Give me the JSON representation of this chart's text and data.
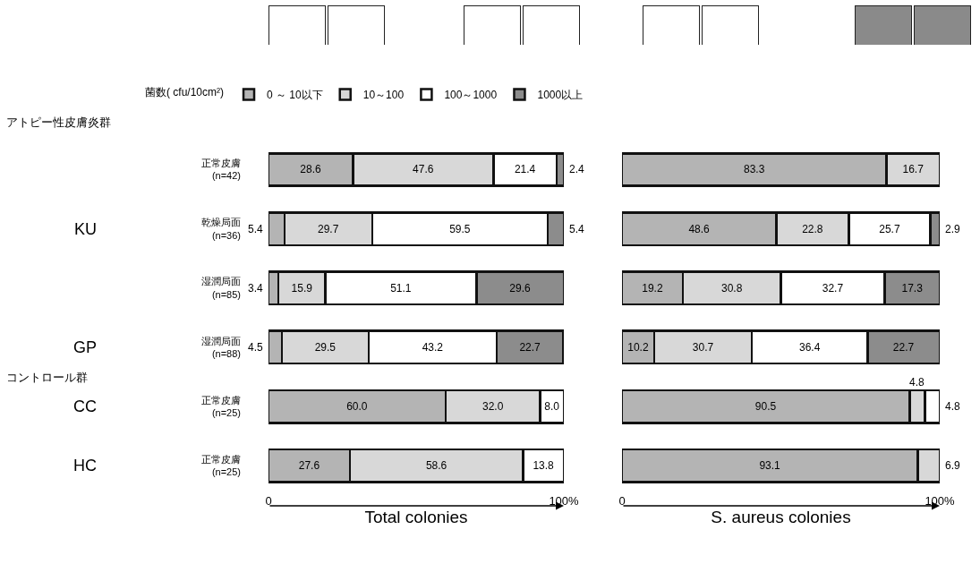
{
  "chart_data": [
    {
      "type": "bar",
      "orientation": "horizontal",
      "stacked": true,
      "xlabel": "Total colonies",
      "legend": "top",
      "legend_title": "菌数( cfu/10cm²)",
      "categories": [
        "正常皮膚 (n=42)",
        "乾燥局面 (n=36)",
        "湿潤局面 (n=85)",
        "湿潤局面 (n=88)",
        "正常皮膚 (n=25)",
        "正常皮膚 (n=25)"
      ],
      "xlim": [
        0,
        100
      ],
      "xticks": [
        0,
        {
          "value": 100,
          "label": "100%"
        }
      ],
      "annotations": [
        "アトピー性皮膚炎群",
        "KU",
        "GP",
        "コントロール群",
        "CC",
        "HC"
      ],
      "series": [
        {
          "name": "0 ～ 10以下",
          "color": "#b4b4b4",
          "values": [
            28.6,
            5.4,
            3.4,
            4.5,
            60.0,
            27.6
          ],
          "value_labels": [
            "28.6",
            "5.4",
            "3.4",
            "4.5",
            "60.0",
            "27.6"
          ]
        },
        {
          "name": "10～100",
          "color": "#d8d8d8",
          "values": [
            47.6,
            29.7,
            15.9,
            29.5,
            32.0,
            58.6
          ],
          "value_labels": [
            "47.6",
            "29.7",
            "15.9",
            "29.5",
            "32.0",
            "58.6"
          ]
        },
        {
          "name": "100～1000",
          "color": "#ffffff",
          "values": [
            21.4,
            59.5,
            51.1,
            43.2,
            8.0,
            13.8
          ],
          "value_labels": [
            "21.4",
            "59.5",
            "51.1",
            "43.2",
            "8.0",
            "13.8"
          ]
        },
        {
          "name": "1000以上",
          "color": "#8c8c8c",
          "values": [
            2.4,
            5.4,
            29.6,
            22.7,
            null,
            null
          ],
          "value_labels": [
            "2.4",
            "5.4",
            "29.6",
            "22.7",
            null,
            null
          ]
        }
      ]
    },
    {
      "type": "bar",
      "orientation": "horizontal",
      "stacked": true,
      "xlabel": "S. aureus colonies",
      "categories": [
        null,
        null,
        null,
        null,
        null,
        null
      ],
      "xlim": [
        0,
        100
      ],
      "xticks": [
        0,
        {
          "value": 100,
          "label": "100%"
        }
      ],
      "series": [
        {
          "color": "#b4b4b4",
          "values": [
            83.3,
            48.6,
            19.2,
            10.2,
            90.5,
            93.1
          ],
          "value_labels": [
            "83.3",
            "48.6",
            "19.2",
            "10.2",
            "90.5",
            "93.1"
          ]
        },
        {
          "color": "#d8d8d8",
          "values": [
            16.7,
            22.8,
            30.8,
            30.7,
            4.8,
            6.9
          ],
          "value_labels": [
            "16.7",
            "22.8",
            "30.8",
            "30.7",
            "4.8",
            "6.9"
          ]
        },
        {
          "color": "#ffffff",
          "values": [
            null,
            25.7,
            32.7,
            36.4,
            4.8,
            null
          ],
          "value_labels": [
            null,
            "25.7",
            "32.7",
            "36.4",
            "4.8",
            null
          ]
        },
        {
          "color": "#8c8c8c",
          "values": [
            null,
            2.9,
            17.3,
            22.7,
            null,
            null
          ],
          "value_labels": [
            null,
            "2.9",
            "17.3",
            "22.7",
            null,
            null
          ]
        }
      ]
    }
  ]
}
